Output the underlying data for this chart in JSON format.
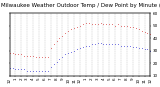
{
  "title": "Milwaukee Weather Outdoor Temp / Dew Point by Minute (24 Hours) (Alternate)",
  "background_color": "#ffffff",
  "grid_color": "#aaaaaa",
  "xlim": [
    0,
    1440
  ],
  "ylim": [
    10,
    60
  ],
  "yticks": [
    10,
    20,
    30,
    40,
    50,
    60
  ],
  "xtick_positions": [
    0,
    60,
    120,
    180,
    240,
    300,
    360,
    420,
    480,
    540,
    600,
    660,
    720,
    780,
    840,
    900,
    960,
    1020,
    1080,
    1140,
    1200,
    1260,
    1320,
    1380,
    1440
  ],
  "xtick_labels": [
    "12",
    "1",
    "2",
    "3",
    "4",
    "5",
    "6",
    "7",
    "8",
    "9",
    "10",
    "11",
    "12",
    "1",
    "2",
    "3",
    "4",
    "5",
    "6",
    "7",
    "8",
    "9",
    "10",
    "11",
    "12"
  ],
  "temp_color": "#cc0000",
  "dew_color": "#0000cc",
  "temp_x": [
    0,
    30,
    60,
    90,
    120,
    150,
    180,
    210,
    240,
    270,
    300,
    330,
    360,
    390,
    420,
    450,
    480,
    510,
    540,
    570,
    600,
    630,
    660,
    690,
    720,
    750,
    780,
    810,
    840,
    870,
    900,
    930,
    960,
    990,
    1020,
    1050,
    1080,
    1110,
    1140,
    1170,
    1200,
    1230,
    1260,
    1290,
    1320,
    1350,
    1380,
    1410,
    1440
  ],
  "temp_y": [
    28,
    28,
    27,
    27,
    27,
    26,
    26,
    26,
    26,
    25,
    25,
    25,
    25,
    25,
    32,
    35,
    38,
    40,
    42,
    44,
    46,
    47,
    48,
    49,
    50,
    51,
    52,
    52,
    51,
    51,
    51,
    52,
    51,
    51,
    51,
    51,
    50,
    51,
    50,
    50,
    50,
    49,
    49,
    48,
    47,
    46,
    45,
    44,
    43
  ],
  "dew_x": [
    0,
    30,
    60,
    90,
    120,
    150,
    180,
    210,
    240,
    270,
    300,
    330,
    360,
    390,
    420,
    450,
    480,
    510,
    540,
    570,
    600,
    630,
    660,
    690,
    720,
    750,
    780,
    810,
    840,
    870,
    900,
    930,
    960,
    990,
    1020,
    1050,
    1080,
    1110,
    1140,
    1170,
    1200,
    1230,
    1260,
    1290,
    1320,
    1350,
    1380,
    1410,
    1440
  ],
  "dew_y": [
    16,
    16,
    15,
    15,
    15,
    15,
    14,
    14,
    14,
    14,
    14,
    14,
    14,
    14,
    17,
    19,
    21,
    23,
    25,
    27,
    28,
    29,
    30,
    31,
    32,
    33,
    34,
    34,
    35,
    35,
    36,
    36,
    35,
    35,
    35,
    35,
    35,
    35,
    34,
    34,
    34,
    34,
    33,
    33,
    32,
    32,
    31,
    31,
    30
  ],
  "title_fontsize": 4.0,
  "tick_fontsize": 3.0,
  "dot_size": 0.8
}
